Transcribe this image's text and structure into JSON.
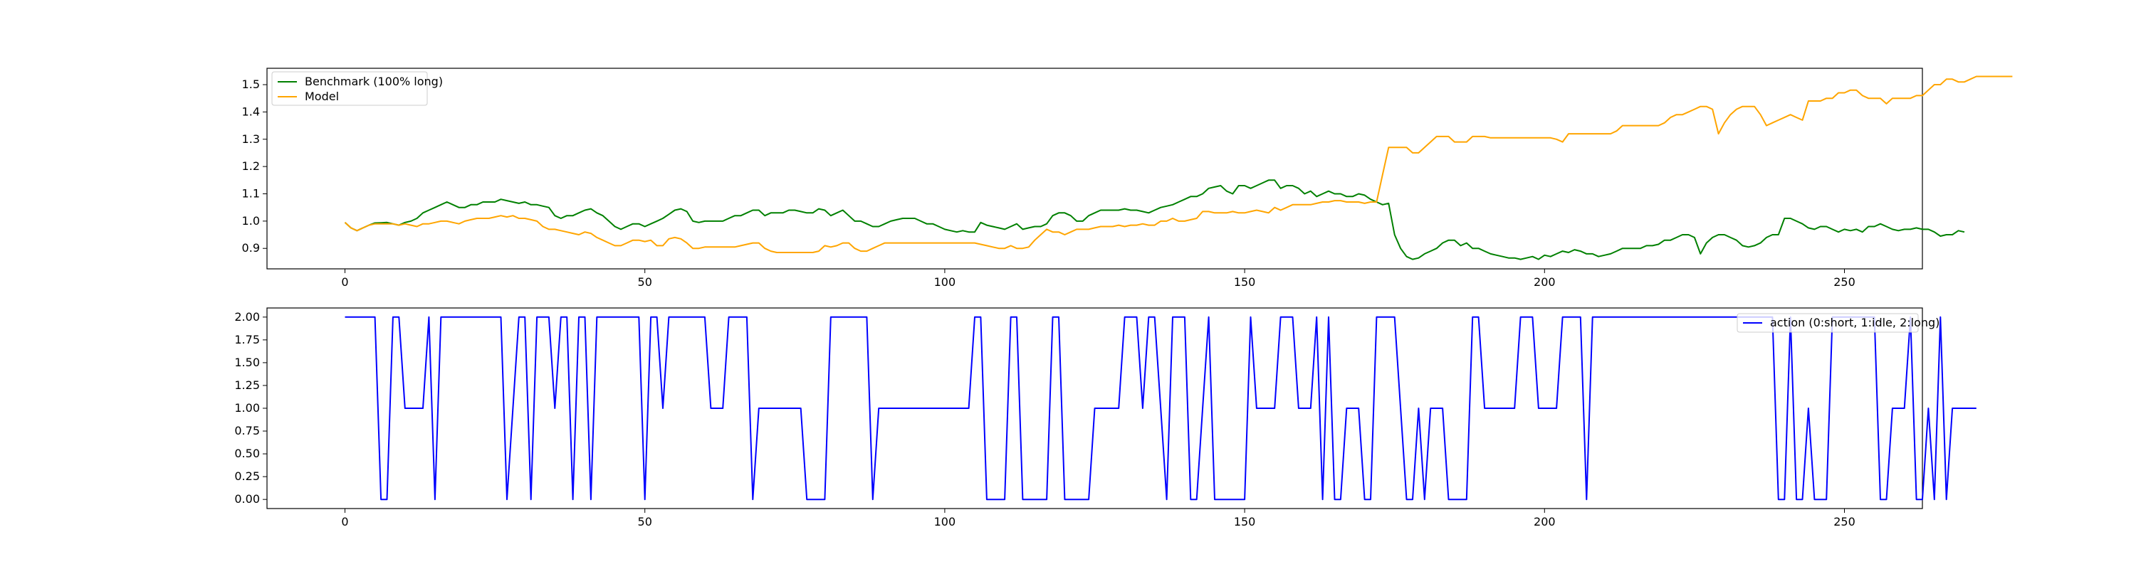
{
  "chart_data": [
    {
      "type": "line",
      "title": "",
      "xlabel": "",
      "ylabel": "",
      "xlim": [
        -13,
        263
      ],
      "ylim": [
        0.825,
        1.56
      ],
      "x_ticks": [
        0,
        50,
        100,
        150,
        200,
        250
      ],
      "y_ticks": [
        0.9,
        1.0,
        1.1,
        1.2,
        1.3,
        1.4,
        1.5
      ],
      "y_tick_labels": [
        "0.9",
        "1.0",
        "1.1",
        "1.2",
        "1.3",
        "1.4",
        "1.5"
      ],
      "grid": false,
      "legend_position": "top-left",
      "x_start": 0,
      "series": [
        {
          "name": "Benchmark (100% long)",
          "color": "#008000",
          "values": [
            0.995,
            0.975,
            0.965,
            0.975,
            0.985,
            0.993,
            0.994,
            0.995,
            0.99,
            0.985,
            0.995,
            1.0,
            1.01,
            1.03,
            1.04,
            1.05,
            1.06,
            1.07,
            1.06,
            1.05,
            1.05,
            1.06,
            1.06,
            1.07,
            1.07,
            1.07,
            1.08,
            1.075,
            1.07,
            1.065,
            1.07,
            1.06,
            1.06,
            1.055,
            1.05,
            1.02,
            1.01,
            1.02,
            1.02,
            1.03,
            1.04,
            1.045,
            1.03,
            1.02,
            1.0,
            0.98,
            0.97,
            0.98,
            0.99,
            0.99,
            0.98,
            0.99,
            1.0,
            1.01,
            1.025,
            1.04,
            1.045,
            1.035,
            1.0,
            0.995,
            1.0,
            1.0,
            1.0,
            1.0,
            1.01,
            1.02,
            1.02,
            1.03,
            1.04,
            1.04,
            1.02,
            1.03,
            1.03,
            1.03,
            1.04,
            1.04,
            1.035,
            1.03,
            1.03,
            1.045,
            1.04,
            1.02,
            1.03,
            1.04,
            1.02,
            1.0,
            1.0,
            0.99,
            0.98,
            0.98,
            0.99,
            1.0,
            1.005,
            1.01,
            1.01,
            1.01,
            1.0,
            0.99,
            0.99,
            0.98,
            0.97,
            0.965,
            0.96,
            0.965,
            0.96,
            0.96,
            0.995,
            0.985,
            0.98,
            0.975,
            0.97,
            0.98,
            0.99,
            0.97,
            0.975,
            0.98,
            0.98,
            0.99,
            1.02,
            1.03,
            1.03,
            1.02,
            1.0,
            1.0,
            1.02,
            1.03,
            1.04,
            1.04,
            1.04,
            1.04,
            1.045,
            1.04,
            1.04,
            1.035,
            1.03,
            1.04,
            1.05,
            1.055,
            1.06,
            1.07,
            1.08,
            1.09,
            1.09,
            1.1,
            1.12,
            1.125,
            1.13,
            1.11,
            1.1,
            1.13,
            1.13,
            1.12,
            1.13,
            1.14,
            1.15,
            1.15,
            1.12,
            1.13,
            1.13,
            1.12,
            1.1,
            1.11,
            1.09,
            1.1,
            1.11,
            1.1,
            1.1,
            1.09,
            1.09,
            1.1,
            1.095,
            1.08,
            1.07,
            1.06,
            1.065,
            0.95,
            0.9,
            0.87,
            0.86,
            0.865,
            0.88,
            0.89,
            0.9,
            0.92,
            0.93,
            0.93,
            0.91,
            0.92,
            0.9,
            0.9,
            0.89,
            0.88,
            0.875,
            0.87,
            0.865,
            0.865,
            0.86,
            0.865,
            0.87,
            0.86,
            0.875,
            0.87,
            0.88,
            0.89,
            0.885,
            0.895,
            0.89,
            0.88,
            0.88,
            0.87,
            0.875,
            0.88,
            0.89,
            0.9,
            0.9,
            0.9,
            0.9,
            0.91,
            0.91,
            0.915,
            0.93,
            0.93,
            0.94,
            0.95,
            0.95,
            0.94,
            0.88,
            0.92,
            0.94,
            0.95,
            0.95,
            0.94,
            0.93,
            0.91,
            0.905,
            0.91,
            0.92,
            0.94,
            0.95,
            0.95,
            1.01,
            1.01,
            1.0,
            0.99,
            0.975,
            0.97,
            0.98,
            0.98,
            0.97,
            0.96,
            0.97,
            0.965,
            0.97,
            0.96,
            0.98,
            0.98,
            0.99,
            0.98,
            0.97,
            0.965,
            0.97,
            0.97,
            0.975,
            0.97,
            0.97,
            0.96,
            0.945,
            0.95,
            0.95,
            0.965,
            0.96
          ]
        },
        {
          "name": "Model",
          "color": "#FFA500",
          "values": [
            0.995,
            0.975,
            0.965,
            0.975,
            0.985,
            0.99,
            0.99,
            0.99,
            0.99,
            0.985,
            0.99,
            0.985,
            0.98,
            0.99,
            0.99,
            0.995,
            1.0,
            1.0,
            0.995,
            0.99,
            1.0,
            1.005,
            1.01,
            1.01,
            1.01,
            1.015,
            1.02,
            1.015,
            1.02,
            1.01,
            1.01,
            1.005,
            1.0,
            0.98,
            0.97,
            0.97,
            0.965,
            0.96,
            0.955,
            0.95,
            0.96,
            0.955,
            0.94,
            0.93,
            0.92,
            0.91,
            0.91,
            0.92,
            0.93,
            0.93,
            0.925,
            0.93,
            0.91,
            0.91,
            0.935,
            0.94,
            0.935,
            0.92,
            0.9,
            0.9,
            0.905,
            0.905,
            0.905,
            0.905,
            0.905,
            0.905,
            0.91,
            0.915,
            0.92,
            0.92,
            0.9,
            0.89,
            0.885,
            0.885,
            0.885,
            0.885,
            0.885,
            0.885,
            0.885,
            0.89,
            0.91,
            0.905,
            0.91,
            0.92,
            0.92,
            0.9,
            0.89,
            0.89,
            0.9,
            0.91,
            0.92,
            0.92,
            0.92,
            0.92,
            0.92,
            0.92,
            0.92,
            0.92,
            0.92,
            0.92,
            0.92,
            0.92,
            0.92,
            0.92,
            0.92,
            0.92,
            0.915,
            0.91,
            0.905,
            0.9,
            0.9,
            0.91,
            0.9,
            0.9,
            0.905,
            0.93,
            0.95,
            0.97,
            0.96,
            0.96,
            0.95,
            0.96,
            0.97,
            0.97,
            0.97,
            0.975,
            0.98,
            0.98,
            0.98,
            0.985,
            0.98,
            0.985,
            0.985,
            0.99,
            0.985,
            0.985,
            1.0,
            1.0,
            1.01,
            1.0,
            1.0,
            1.005,
            1.01,
            1.035,
            1.035,
            1.03,
            1.03,
            1.03,
            1.035,
            1.03,
            1.03,
            1.035,
            1.04,
            1.035,
            1.03,
            1.05,
            1.04,
            1.05,
            1.06,
            1.06,
            1.06,
            1.06,
            1.065,
            1.07,
            1.07,
            1.075,
            1.075,
            1.07,
            1.07,
            1.07,
            1.065,
            1.07,
            1.07,
            1.17,
            1.27,
            1.27,
            1.27,
            1.27,
            1.25,
            1.25,
            1.27,
            1.29,
            1.31,
            1.31,
            1.31,
            1.29,
            1.29,
            1.29,
            1.31,
            1.31,
            1.31,
            1.305,
            1.305,
            1.305,
            1.305,
            1.305,
            1.305,
            1.305,
            1.305,
            1.305,
            1.305,
            1.305,
            1.3,
            1.29,
            1.32,
            1.32,
            1.32,
            1.32,
            1.32,
            1.32,
            1.32,
            1.32,
            1.33,
            1.35,
            1.35,
            1.35,
            1.35,
            1.35,
            1.35,
            1.35,
            1.36,
            1.38,
            1.39,
            1.39,
            1.4,
            1.41,
            1.42,
            1.42,
            1.41,
            1.32,
            1.36,
            1.39,
            1.41,
            1.42,
            1.42,
            1.42,
            1.39,
            1.35,
            1.36,
            1.37,
            1.38,
            1.39,
            1.38,
            1.37,
            1.44,
            1.44,
            1.44,
            1.45,
            1.45,
            1.47,
            1.47,
            1.48,
            1.48,
            1.46,
            1.45,
            1.45,
            1.45,
            1.43,
            1.45,
            1.45,
            1.45,
            1.45,
            1.46,
            1.46,
            1.48,
            1.5,
            1.5,
            1.52,
            1.52,
            1.51,
            1.51,
            1.52,
            1.53,
            1.53,
            1.53,
            1.53,
            1.53,
            1.53,
            1.53
          ]
        }
      ]
    },
    {
      "type": "line",
      "title": "",
      "xlabel": "",
      "ylabel": "",
      "xlim": [
        -13,
        263
      ],
      "ylim": [
        -0.1,
        2.1
      ],
      "x_ticks": [
        0,
        50,
        100,
        150,
        200,
        250
      ],
      "y_ticks": [
        0.0,
        0.25,
        0.5,
        0.75,
        1.0,
        1.25,
        1.5,
        1.75,
        2.0
      ],
      "y_tick_labels": [
        "0.00",
        "0.25",
        "0.50",
        "0.75",
        "1.00",
        "1.25",
        "1.50",
        "1.75",
        "2.00"
      ],
      "grid": false,
      "legend_position": "top-right",
      "x_start": 0,
      "series": [
        {
          "name": "action (0:short, 1:idle, 2:long)",
          "color": "#0000FF",
          "values": [
            2,
            2,
            2,
            2,
            2,
            2,
            0,
            0,
            2,
            2,
            1,
            1,
            1,
            1,
            2,
            0,
            2,
            2,
            2,
            2,
            2,
            2,
            2,
            2,
            2,
            2,
            2,
            0,
            1,
            2,
            2,
            0,
            2,
            2,
            2,
            1,
            2,
            2,
            0,
            2,
            2,
            0,
            2,
            2,
            2,
            2,
            2,
            2,
            2,
            2,
            0,
            2,
            2,
            1,
            2,
            2,
            2,
            2,
            2,
            2,
            2,
            1,
            1,
            1,
            2,
            2,
            2,
            2,
            0,
            1,
            1,
            1,
            1,
            1,
            1,
            1,
            1,
            0,
            0,
            0,
            0,
            2,
            2,
            2,
            2,
            2,
            2,
            2,
            0,
            1,
            1,
            1,
            1,
            1,
            1,
            1,
            1,
            1,
            1,
            1,
            1,
            1,
            1,
            1,
            1,
            2,
            2,
            0,
            0,
            0,
            0,
            2,
            2,
            0,
            0,
            0,
            0,
            0,
            2,
            2,
            0,
            0,
            0,
            0,
            0,
            1,
            1,
            1,
            1,
            1,
            2,
            2,
            2,
            1,
            2,
            2,
            1,
            0,
            2,
            2,
            2,
            0,
            0,
            1,
            2,
            0,
            0,
            0,
            0,
            0,
            0,
            2,
            1,
            1,
            1,
            1,
            2,
            2,
            2,
            1,
            1,
            1,
            2,
            0,
            2,
            0,
            0,
            1,
            1,
            1,
            0,
            0,
            2,
            2,
            2,
            2,
            1,
            0,
            0,
            1,
            0,
            1,
            1,
            1,
            0,
            0,
            0,
            0,
            2,
            2,
            1,
            1,
            1,
            1,
            1,
            1,
            2,
            2,
            2,
            1,
            1,
            1,
            1,
            2,
            2,
            2,
            2,
            0,
            2,
            2,
            2,
            2,
            2,
            2,
            2,
            2,
            2,
            2,
            2,
            2,
            2,
            2,
            2,
            2,
            2,
            2,
            2,
            2,
            2,
            2,
            2,
            2,
            2,
            2,
            2,
            2,
            2,
            2,
            2,
            0,
            0,
            2,
            0,
            0,
            1,
            0,
            0,
            0,
            2,
            2,
            2,
            2,
            2,
            2,
            2,
            2,
            0,
            0,
            1,
            1,
            1,
            2,
            0,
            0,
            1,
            0,
            2,
            0,
            1,
            1,
            1,
            1,
            1
          ]
        }
      ]
    }
  ]
}
